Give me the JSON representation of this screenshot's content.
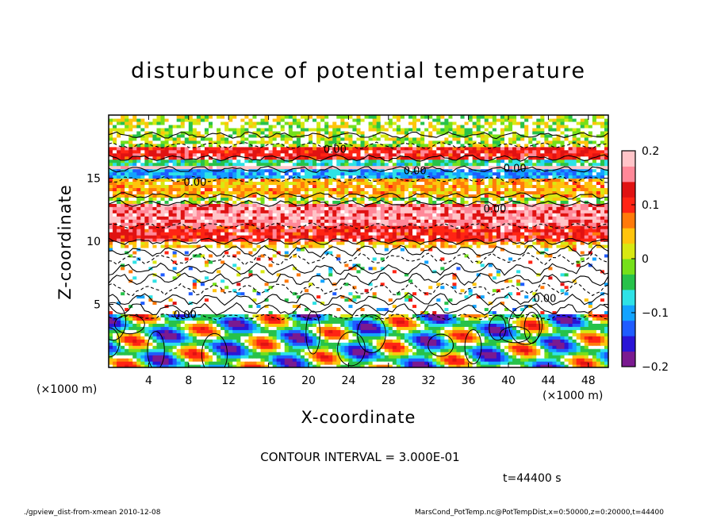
{
  "chart_data": {
    "type": "heatmap",
    "title": "disturbunce of potential temperature",
    "xlabel": "X-coordinate",
    "ylabel": "Z-coordinate",
    "x_unit_left": "(×1000 m)",
    "x_unit_right": "(×1000 m)",
    "xlim": [
      0,
      50
    ],
    "ylim": [
      0,
      20
    ],
    "x_ticks": [
      4,
      8,
      12,
      16,
      20,
      24,
      28,
      32,
      36,
      40,
      44,
      48
    ],
    "y_ticks": [
      5,
      10,
      15
    ],
    "colorbar": {
      "ticks": [
        0.2,
        0.1,
        0,
        -0.1,
        -0.2
      ],
      "tick_labels": [
        "0.2",
        "0.1",
        "0",
        "−0.1",
        "−0.2"
      ],
      "range": [
        -0.2,
        0.2
      ],
      "colors": [
        "#7a1a90",
        "#2a14d6",
        "#1f5cff",
        "#12a3ff",
        "#2ee2e6",
        "#27c24a",
        "#75e01a",
        "#d8e812",
        "#ffc40d",
        "#ff7a0a",
        "#ff2414",
        "#e01212",
        "#ff8898",
        "#ffc4c8"
      ]
    },
    "contour_labels": [
      "0.00",
      "0.00",
      "0.00",
      "0.00",
      "0.00",
      "0.00",
      "0.00"
    ],
    "bands": [
      {
        "z": [
          17.6,
          18.4
        ],
        "value": 0.0
      },
      {
        "z": [
          16.6,
          17.6
        ],
        "value": 0.12
      },
      {
        "z": [
          16.1,
          16.6
        ],
        "value": -0.05
      },
      {
        "z": [
          15.7,
          16.1
        ],
        "value": 0.2
      },
      {
        "z": [
          14.9,
          15.7
        ],
        "value": -0.1
      },
      {
        "z": [
          13.6,
          14.9
        ],
        "value": 0.05
      },
      {
        "z": [
          13.0,
          13.6
        ],
        "value": 0.0
      },
      {
        "z": [
          11.2,
          13.0
        ],
        "value": 0.16
      },
      {
        "z": [
          10.0,
          11.2
        ],
        "value": 0.12
      },
      {
        "z": [
          9.2,
          10.0
        ],
        "value": 0.03
      },
      {
        "z": [
          5.0,
          9.2
        ],
        "value": 0.0
      },
      {
        "z": [
          4.0,
          5.0
        ],
        "value": -0.02
      },
      {
        "z": [
          0.0,
          4.0
        ],
        "value": -0.08
      }
    ]
  },
  "annotations": {
    "contour_interval": "CONTOUR INTERVAL = 3.000E-01",
    "time": "t=44400 s",
    "footer_left": "./gpview_dist-from-xmean   2010-12-08",
    "footer_right": "MarsCond_PotTemp.nc@PotTempDist,x=0:50000,z=0:20000,t=44400"
  }
}
